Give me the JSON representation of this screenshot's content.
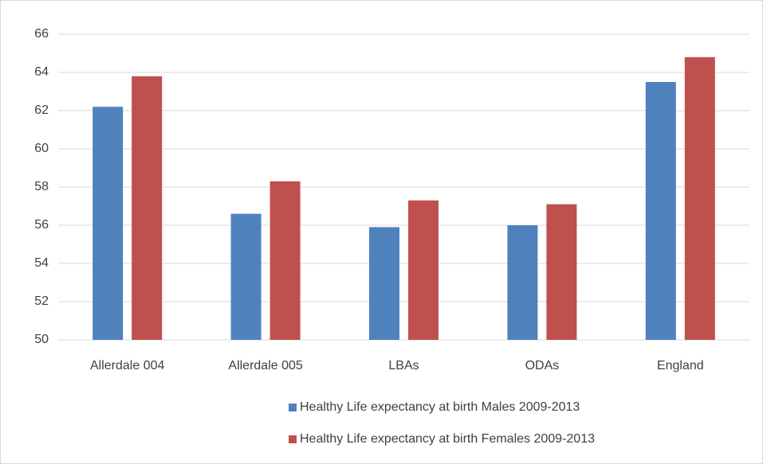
{
  "chart_data": {
    "type": "bar",
    "categories": [
      "Allerdale 004",
      "Allerdale 005",
      "LBAs",
      "ODAs",
      "England"
    ],
    "series": [
      {
        "name": "Healthy Life expectancy at birth Males 2009-2013",
        "color": "#4f81bd",
        "values": [
          62.2,
          56.6,
          55.9,
          56.0,
          63.5
        ]
      },
      {
        "name": "Healthy Life expectancy at birth Females 2009-2013",
        "color": "#c0504d",
        "values": [
          63.8,
          58.3,
          57.3,
          57.1,
          64.8
        ]
      }
    ],
    "ylim": [
      50,
      66
    ],
    "yticks": [
      50,
      52,
      54,
      56,
      58,
      60,
      62,
      64,
      66
    ],
    "grid": true,
    "legend": "bottom"
  }
}
